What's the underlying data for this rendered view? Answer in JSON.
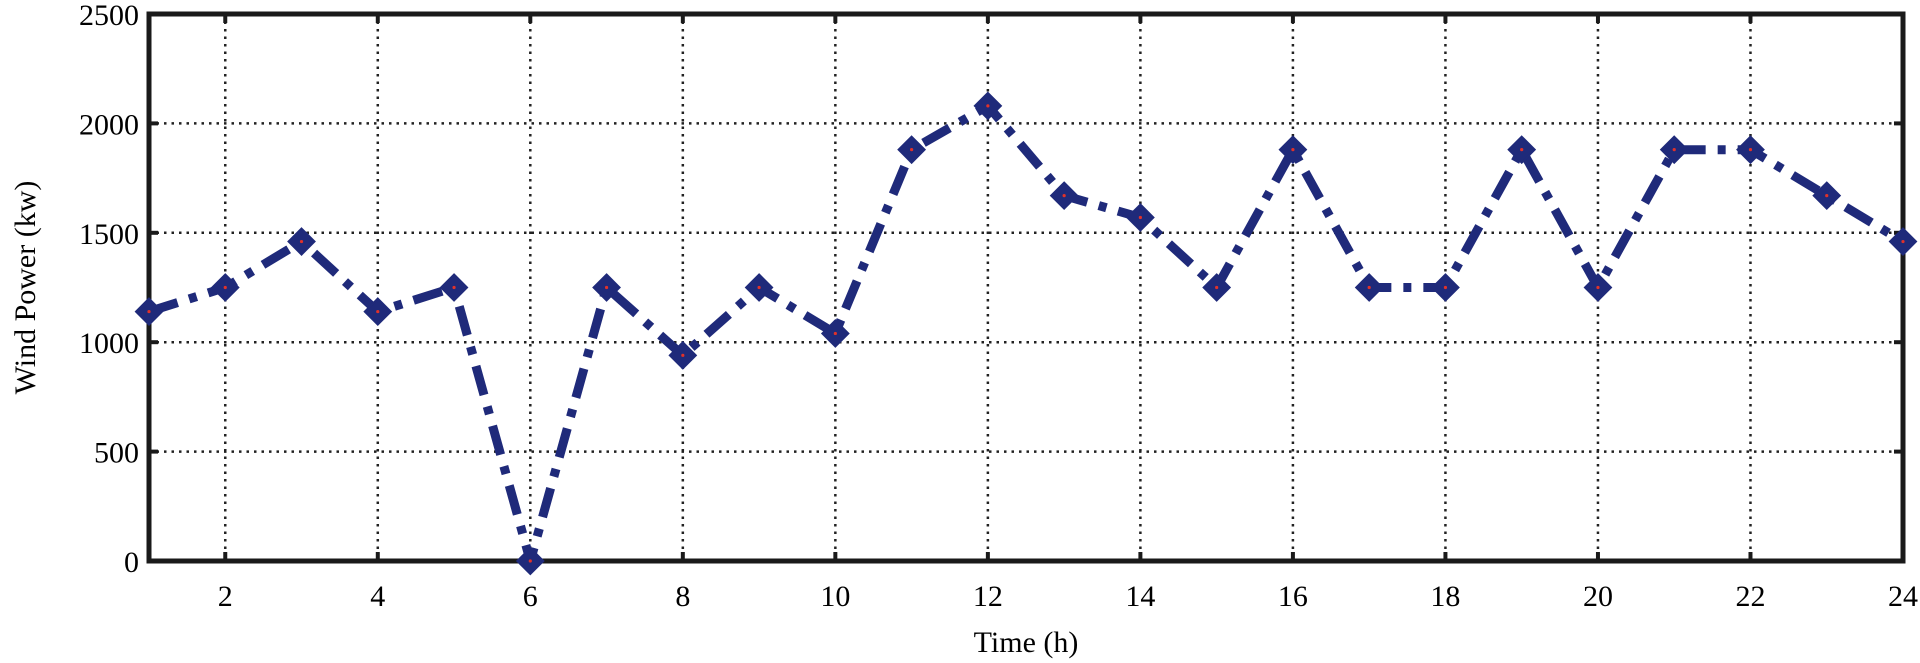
{
  "chart_data": {
    "type": "line",
    "title": "",
    "xlabel": "Time (h)",
    "ylabel": "Wind Power (kw)",
    "xlim": [
      1,
      24
    ],
    "ylim": [
      0,
      2500
    ],
    "xticks": [
      2,
      4,
      6,
      8,
      10,
      12,
      14,
      16,
      18,
      20,
      22,
      24
    ],
    "yticks": [
      0,
      500,
      1000,
      1500,
      2000,
      2500
    ],
    "grid": true,
    "series": [
      {
        "x": [
          1,
          2,
          3,
          4,
          5,
          6,
          7,
          8,
          9,
          10,
          11,
          12,
          13,
          14,
          15,
          16,
          17,
          18,
          19,
          20,
          21,
          22,
          23,
          24
        ],
        "values": [
          1140,
          1250,
          1460,
          1140,
          1250,
          0,
          1250,
          940,
          1250,
          1040,
          1880,
          2080,
          1670,
          1570,
          1250,
          1880,
          1250,
          1250,
          1880,
          1250,
          1880,
          1880,
          1670,
          1460
        ],
        "color": "#1f2a7a",
        "marker": "diamond",
        "line_style": "dash-dot"
      }
    ]
  }
}
